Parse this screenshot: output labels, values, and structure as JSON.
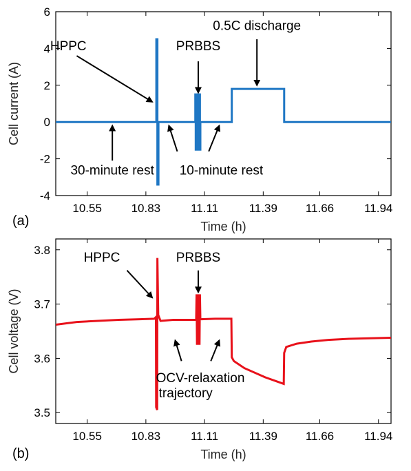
{
  "chart_data": [
    {
      "type": "line",
      "panel_label": "(a)",
      "xlabel": "Time (h)",
      "ylabel": "Cell current (A)",
      "xlim": [
        10.4,
        12.0
      ],
      "ylim": [
        -4,
        6
      ],
      "x_ticks": [
        10.55,
        10.83,
        11.11,
        11.39,
        11.66,
        11.94
      ],
      "x_tick_labels": [
        "10.55",
        "10.83",
        "11.11",
        "11.39",
        "11.66",
        "11.94"
      ],
      "y_ticks": [
        -4,
        -2,
        0,
        2,
        4,
        6
      ],
      "y_tick_labels": [
        "-4",
        "-2",
        "0",
        "2",
        "4",
        "6"
      ],
      "color": "#1f77c4",
      "series": [
        {
          "x": [
            10.4,
            10.88,
            10.88,
            10.885,
            10.885,
            10.89,
            10.89,
            11.066,
            11.066,
            11.068,
            11.068,
            11.07,
            11.07,
            11.072,
            11.072,
            11.074,
            11.074,
            11.076,
            11.076,
            11.078,
            11.078,
            11.08,
            11.08,
            11.082,
            11.082,
            11.084,
            11.084,
            11.086,
            11.086,
            11.088,
            11.088,
            11.09,
            11.09,
            11.24,
            11.24,
            11.49,
            11.49,
            12.0
          ],
          "y": [
            0,
            0,
            4.5,
            4.5,
            -3.4,
            -3.4,
            0,
            0,
            1.5,
            1.5,
            -1.5,
            -1.5,
            1.5,
            1.5,
            -1.5,
            -1.5,
            1.5,
            1.5,
            -1.5,
            -1.5,
            1.5,
            1.5,
            -1.5,
            -1.5,
            1.5,
            1.5,
            -1.5,
            -1.5,
            1.5,
            1.5,
            -1.5,
            -1.5,
            0,
            0,
            1.8,
            1.8,
            0,
            0
          ]
        }
      ],
      "annotations": [
        {
          "text": "HPPC",
          "x": 10.46,
          "y": 3.9,
          "arrow_to": [
            10.86,
            1.1
          ]
        },
        {
          "text": "PRBBS",
          "x": 11.08,
          "y": 3.9,
          "arrow_from": [
            11.08,
            3.3
          ],
          "arrow_to": [
            11.08,
            1.6
          ]
        },
        {
          "text": "0.5C discharge",
          "x": 11.36,
          "y": 5.0,
          "arrow_from": [
            11.36,
            4.5
          ],
          "arrow_to": [
            11.36,
            2.0
          ]
        },
        {
          "text": "30-minute rest",
          "x": 10.67,
          "y": -2.85,
          "arrow_from": [
            10.67,
            -2.1
          ],
          "arrow_to": [
            10.67,
            -0.2
          ]
        },
        {
          "text": "10-minute rest",
          "x": 11.19,
          "y": -2.85,
          "arrow_from": [
            10.98,
            -1.6
          ],
          "arrow_to": [
            10.94,
            -0.2
          ]
        },
        {
          "text": "",
          "x": 11.19,
          "y": -2.85,
          "arrow_from": [
            11.13,
            -1.6
          ],
          "arrow_to": [
            11.18,
            -0.2
          ]
        }
      ]
    },
    {
      "type": "line",
      "panel_label": "(b)",
      "xlabel": "Time (h)",
      "ylabel": "Cell voltage (V)",
      "xlim": [
        10.4,
        12.0
      ],
      "ylim": [
        3.48,
        3.82
      ],
      "x_ticks": [
        10.55,
        10.83,
        11.11,
        11.39,
        11.66,
        11.94
      ],
      "x_tick_labels": [
        "10.55",
        "10.83",
        "11.11",
        "11.39",
        "11.66",
        "11.94"
      ],
      "y_ticks": [
        3.5,
        3.6,
        3.7,
        3.8
      ],
      "y_tick_labels": [
        "3.5",
        "3.6",
        "3.7",
        "3.8"
      ],
      "color": "#e8111a",
      "series": [
        {
          "x": [
            10.4,
            10.5,
            10.6,
            10.7,
            10.8,
            10.87,
            10.878,
            10.879,
            10.884,
            10.885,
            10.889,
            10.9,
            10.96,
            11.07,
            11.072,
            11.074,
            11.076,
            11.078,
            11.08,
            11.082,
            11.084,
            11.086,
            11.088,
            11.09,
            11.16,
            11.238,
            11.24,
            11.25,
            11.3,
            11.4,
            11.488,
            11.49,
            11.5,
            11.55,
            11.62,
            11.7,
            11.8,
            11.9,
            12.0
          ],
          "y": [
            3.662,
            3.667,
            3.669,
            3.671,
            3.672,
            3.673,
            3.676,
            3.51,
            3.505,
            3.785,
            3.68,
            3.669,
            3.671,
            3.671,
            3.718,
            3.625,
            3.718,
            3.625,
            3.718,
            3.625,
            3.718,
            3.625,
            3.718,
            3.672,
            3.673,
            3.673,
            3.602,
            3.595,
            3.582,
            3.565,
            3.553,
            3.61,
            3.621,
            3.627,
            3.631,
            3.634,
            3.636,
            3.637,
            3.638
          ]
        }
      ],
      "annotations": [
        {
          "text": "HPPC",
          "x": 10.62,
          "y": 3.778,
          "arrow_from": [
            10.74,
            3.762
          ],
          "arrow_to": [
            10.86,
            3.712
          ]
        },
        {
          "text": "PRBBS",
          "x": 11.08,
          "y": 3.778,
          "arrow_from": [
            11.08,
            3.762
          ],
          "arrow_to": [
            11.08,
            3.722
          ]
        },
        {
          "text": "OCV-relaxation",
          "x": 11.09,
          "y": 3.556,
          "arrow_from": [
            11.0,
            3.595
          ],
          "arrow_to": [
            10.97,
            3.633
          ]
        },
        {
          "text": "trajectory",
          "x": 11.02,
          "y": 3.528,
          "arrow_from": [
            11.14,
            3.595
          ],
          "arrow_to": [
            11.18,
            3.633
          ]
        }
      ]
    }
  ]
}
